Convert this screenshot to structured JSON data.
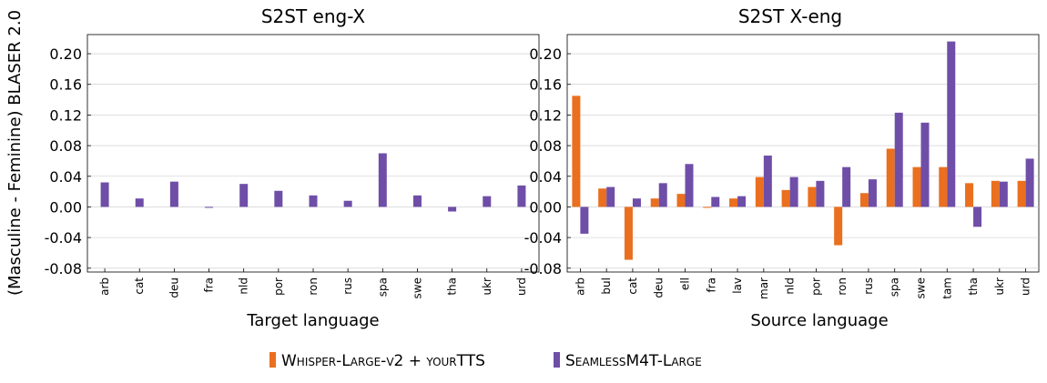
{
  "y_axis_label": "(Masculine - Feminine) BLASER 2.0",
  "y_ticks": [
    "-0.08",
    "-0.04",
    "0.00",
    "0.04",
    "0.08",
    "0.12",
    "0.16",
    "0.20"
  ],
  "legend": {
    "placement": "bottom-center",
    "items": [
      {
        "label": "Whisper-Large-v2 + yourTTS",
        "color": "#ea6f1e"
      },
      {
        "label": "SeamlessM4T-Large",
        "color": "#6f4ea8"
      }
    ]
  },
  "chart_data": [
    {
      "type": "bar",
      "title": "S2ST eng-X",
      "xlabel": "Target language",
      "ylabel": "(Masculine - Feminine) BLASER 2.0",
      "ylim": [
        -0.085,
        0.225
      ],
      "grid": "y",
      "categories": [
        "arb",
        "cat",
        "deu",
        "fra",
        "nld",
        "por",
        "ron",
        "rus",
        "spa",
        "swe",
        "tha",
        "ukr",
        "urd"
      ],
      "series": [
        {
          "name": "SeamlessM4T-Large",
          "color": "#6f4ea8",
          "values": [
            0.032,
            0.011,
            0.033,
            -0.001,
            0.03,
            0.021,
            0.015,
            0.008,
            0.07,
            0.015,
            -0.006,
            0.014,
            0.028
          ]
        }
      ]
    },
    {
      "type": "bar",
      "title": "S2ST X-eng",
      "xlabel": "Source language",
      "ylabel": "",
      "ylim": [
        -0.085,
        0.225
      ],
      "grid": "y",
      "categories": [
        "arb",
        "bul",
        "cat",
        "deu",
        "ell",
        "fra",
        "lav",
        "mar",
        "nld",
        "por",
        "ron",
        "rus",
        "spa",
        "swe",
        "tam",
        "tha",
        "ukr",
        "urd"
      ],
      "series": [
        {
          "name": "Whisper-Large-v2 + yourTTS",
          "color": "#ea6f1e",
          "values": [
            0.145,
            0.024,
            -0.069,
            0.011,
            0.017,
            -0.001,
            0.011,
            0.039,
            0.022,
            0.026,
            -0.05,
            0.018,
            0.076,
            0.052,
            0.052,
            0.031,
            0.034,
            0.034
          ]
        },
        {
          "name": "SeamlessM4T-Large",
          "color": "#6f4ea8",
          "values": [
            -0.035,
            0.026,
            0.011,
            0.031,
            0.056,
            0.013,
            0.014,
            0.067,
            0.039,
            0.034,
            0.052,
            0.036,
            0.123,
            0.11,
            0.216,
            -0.026,
            0.033,
            0.063
          ]
        }
      ]
    }
  ]
}
